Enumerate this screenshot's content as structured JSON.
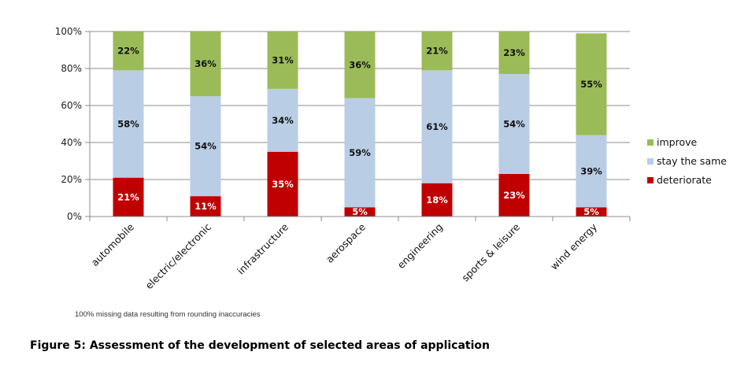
{
  "chart_data": {
    "type": "bar",
    "stacked": true,
    "title": "",
    "xlabel": "",
    "ylabel": "",
    "ylim": [
      0,
      100
    ],
    "yticks": [
      "0%",
      "20%",
      "40%",
      "60%",
      "80%",
      "100%"
    ],
    "grid": true,
    "legend_position": "right",
    "categories": [
      "automobile",
      "electric/electronic",
      "infrastructure",
      "aerospace",
      "engineering",
      "sports & leisure",
      "wind energy"
    ],
    "series": [
      {
        "name": "deteriorate",
        "color": "#c00000",
        "label_color": "#ffffff",
        "values": [
          21,
          11,
          35,
          5,
          18,
          23,
          5
        ],
        "labels": [
          "21%",
          "11%",
          "35%",
          "5%",
          "18%",
          "23%",
          "5%"
        ]
      },
      {
        "name": "stay the same",
        "color": "#b9cde5",
        "label_color": "#111111",
        "values": [
          58,
          54,
          34,
          59,
          61,
          54,
          39
        ],
        "labels": [
          "58%",
          "54%",
          "34%",
          "59%",
          "61%",
          "54%",
          "39%"
        ]
      },
      {
        "name": "improve",
        "color": "#9bbb59",
        "label_color": "#111111",
        "values": [
          22,
          36,
          31,
          36,
          21,
          23,
          55
        ],
        "labels": [
          "22%",
          "36%",
          "31%",
          "36%",
          "21%",
          "23%",
          "55%"
        ]
      }
    ],
    "legend": [
      "improve",
      "stay the same",
      "deteriorate"
    ]
  },
  "footnote": "100% missing data resulting from rounding inaccuracies",
  "caption": "Figure 5: Assessment of the development of selected areas of application"
}
